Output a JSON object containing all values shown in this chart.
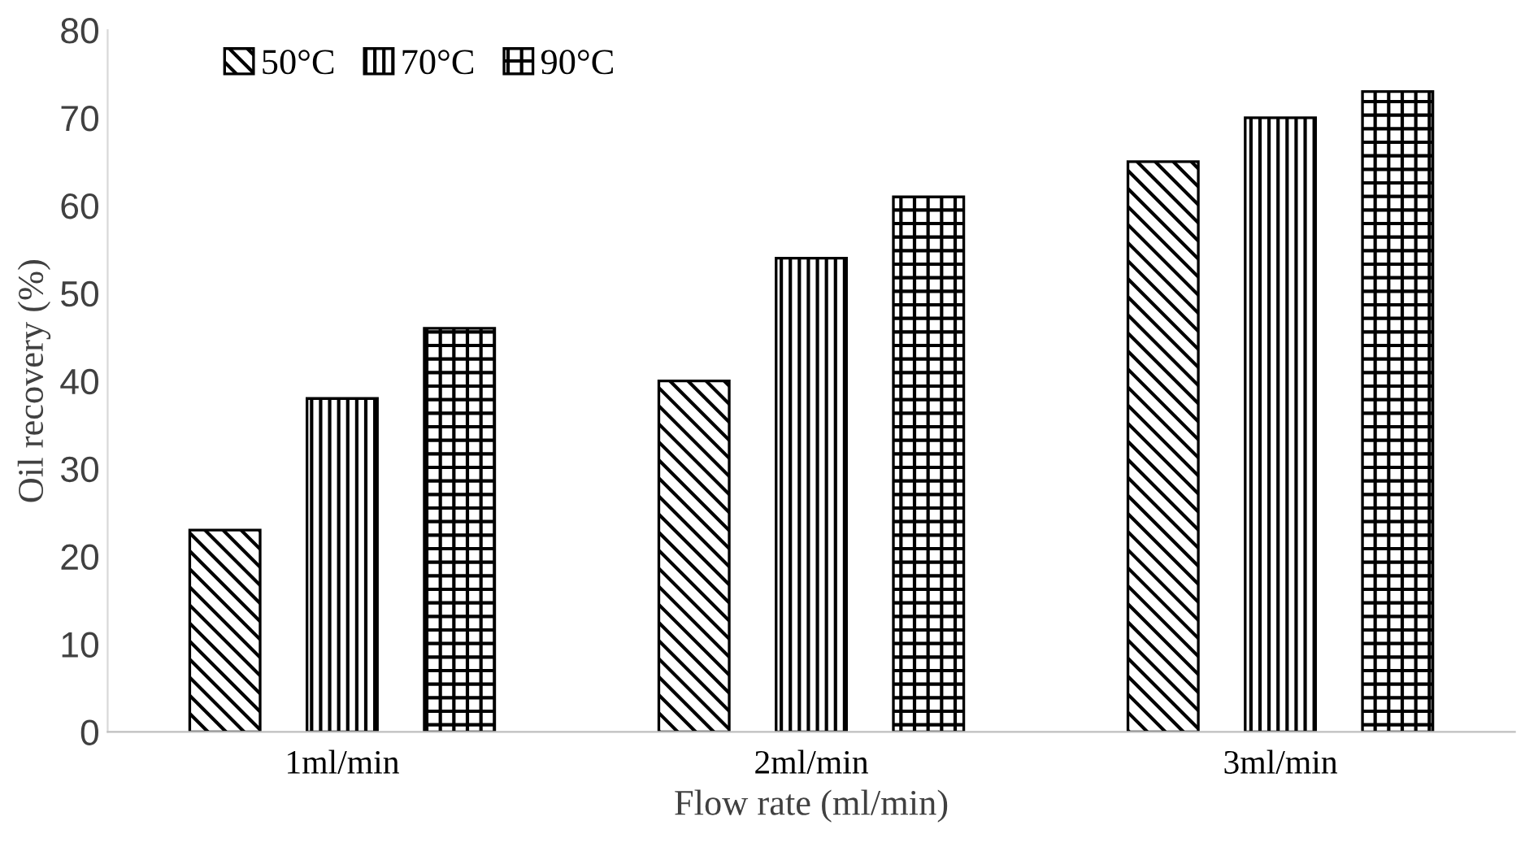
{
  "chart_data": {
    "type": "bar",
    "xlabel": "Flow rate (ml/min)",
    "ylabel": "Oil recovery (%)",
    "categories": [
      "1ml/min",
      "2ml/min",
      "3ml/min"
    ],
    "series": [
      {
        "name": "50°C",
        "color": "#000000",
        "values": [
          23,
          40,
          65
        ]
      },
      {
        "name": "70°C",
        "color": "#000000",
        "values": [
          38,
          54,
          70
        ]
      },
      {
        "name": "90°C",
        "color": "#000000",
        "values": [
          46,
          61,
          73
        ]
      }
    ],
    "ylim": [
      0,
      80
    ],
    "yticks": [
      0,
      10,
      20,
      30,
      40,
      50,
      60,
      70,
      80
    ],
    "grid": false,
    "legend": "top left"
  }
}
